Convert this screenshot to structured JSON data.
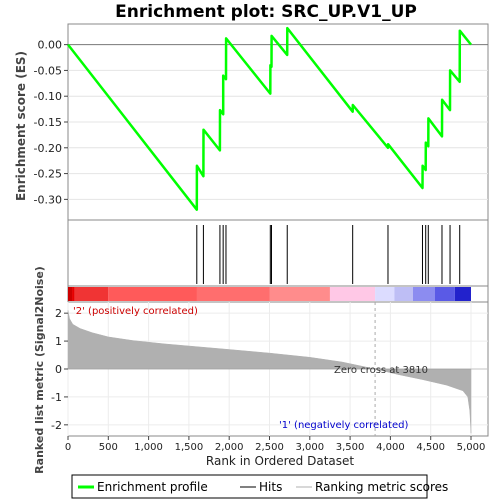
{
  "chart_data": {
    "type": "line",
    "title": "Enrichment plot: SRC_UP.V1_UP",
    "es_panel": {
      "ylabel": "Enrichment score (ES)",
      "ylim": [
        -0.34,
        0.04
      ],
      "yticks": [
        0.0,
        -0.05,
        -0.1,
        -0.15,
        -0.2,
        -0.25,
        -0.3
      ],
      "ytick_labels": [
        "0.00",
        "-0.05",
        "-0.10",
        "-0.15",
        "-0.20",
        "-0.25",
        "-0.30"
      ],
      "series": {
        "name": "Enrichment profile",
        "color": "#00ff00",
        "x": [
          0,
          1598,
          1599,
          1680,
          1681,
          1885,
          1886,
          1925,
          1926,
          1960,
          1961,
          2510,
          2511,
          2525,
          2526,
          2720,
          2721,
          3532,
          3533,
          3970,
          3971,
          4398,
          4399,
          4438,
          4439,
          4470,
          4471,
          4640,
          4641,
          4740,
          4741,
          4860,
          4861,
          5000
        ],
        "y": [
          0.0,
          -0.32,
          -0.235,
          -0.255,
          -0.165,
          -0.205,
          -0.127,
          -0.135,
          -0.06,
          -0.067,
          0.012,
          -0.095,
          -0.04,
          -0.043,
          0.017,
          -0.02,
          0.032,
          -0.13,
          -0.117,
          -0.2,
          -0.193,
          -0.278,
          -0.235,
          -0.243,
          -0.19,
          -0.197,
          -0.143,
          -0.178,
          -0.107,
          -0.127,
          -0.05,
          -0.072,
          0.027,
          0.0
        ]
      }
    },
    "hits": [
      1598,
      1680,
      1885,
      1925,
      1960,
      2510,
      2525,
      2720,
      3532,
      3970,
      4398,
      4438,
      4470,
      4640,
      4740,
      4860
    ],
    "rank_panel": {
      "ylabel": "Ranked list metric (Signal2Noise)",
      "xlabel": "Rank in Ordered Dataset",
      "xlim": [
        0,
        5000
      ],
      "ylim": [
        -2.4,
        2.4
      ],
      "xticks": [
        0,
        500,
        1000,
        1500,
        2000,
        2500,
        3000,
        3500,
        4000,
        4500,
        5000
      ],
      "xtick_labels": [
        "0",
        "500",
        "1,000",
        "1,500",
        "2,000",
        "2,500",
        "3,000",
        "3,500",
        "4,000",
        "4,500",
        "5,000"
      ],
      "yticks": [
        2,
        1,
        0,
        -1,
        -2
      ],
      "ytick_labels": [
        "2",
        "1",
        "0",
        "-1",
        "-2"
      ],
      "metric_curve": {
        "x": [
          0,
          20,
          60,
          150,
          300,
          500,
          800,
          1200,
          1600,
          2000,
          2500,
          3000,
          3400,
          3810,
          4100,
          4400,
          4700,
          4900,
          4960,
          4985,
          5000
        ],
        "y": [
          2.1,
          1.8,
          1.6,
          1.45,
          1.3,
          1.15,
          1.02,
          0.9,
          0.8,
          0.7,
          0.57,
          0.42,
          0.25,
          0.0,
          -0.2,
          -0.38,
          -0.58,
          -0.78,
          -1.0,
          -1.5,
          -2.3
        ]
      },
      "zero_cross": 3810,
      "zero_cross_label": "Zero cross at 3810",
      "pos_label": "'2' (positively correlated)",
      "neg_label": "'1' (negatively correlated)"
    },
    "legend": [
      "Enrichment profile",
      "Hits",
      "Ranking metric scores"
    ],
    "colors": {
      "profile": "#00ff00",
      "hits": "#000000",
      "metric": "#b0b0b0",
      "pos_label": "#cc0000",
      "neg_label": "#0000cc"
    }
  }
}
